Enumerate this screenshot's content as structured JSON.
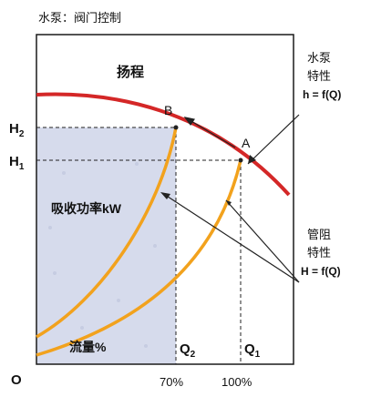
{
  "header": {
    "title": "水泵：阀门控制"
  },
  "labels": {
    "head_axis": "扬程",
    "power": "吸收功率kW",
    "flow": "流量%",
    "origin": "O",
    "point_a": "A",
    "point_b": "B",
    "h1_base": "H",
    "h1_sub": "1",
    "h2_base": "H",
    "h2_sub": "2",
    "q1_base": "Q",
    "q1_sub": "1",
    "q2_base": "Q",
    "q2_sub": "2",
    "tick_70": "70%",
    "tick_100": "100%"
  },
  "annotations": {
    "pump_line1": "水泵",
    "pump_line2": "特性",
    "pump_line3": "h = f(Q)",
    "pipe_line1": "管阻",
    "pipe_line2": "特性",
    "pipe_line3": "H = f(Q)"
  },
  "colors": {
    "pump_curve": "#d42727",
    "pipe_curve": "#f2a21d",
    "shading": "#d6dbec",
    "frame": "#1a1a1a"
  }
}
